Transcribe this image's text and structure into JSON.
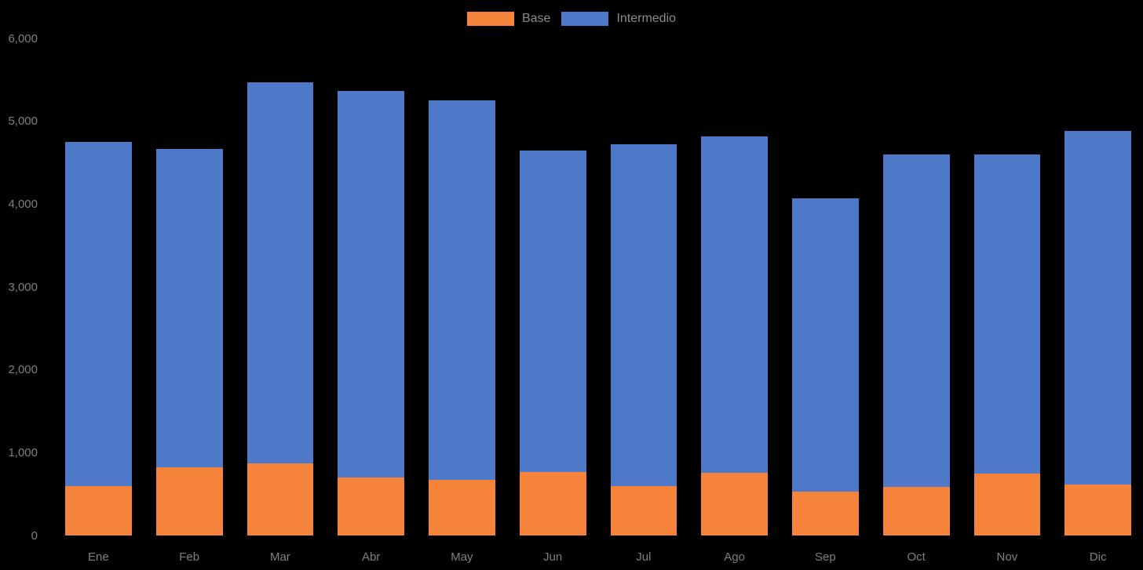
{
  "page": {
    "background_color": "#000000",
    "axis_text_color": "#7f7f7f",
    "legend_text_color": "#8a8a8a"
  },
  "legend": {
    "items": [
      {
        "label": "Base",
        "color": "#F5833C"
      },
      {
        "label": "Intermedio",
        "color": "#4E78C8"
      }
    ]
  },
  "chart_data": {
    "type": "bar",
    "stacked": true,
    "title": "",
    "xlabel": "",
    "ylabel": "",
    "categories": [
      "Ene",
      "Feb",
      "Mar",
      "Abr",
      "May",
      "Jun",
      "Jul",
      "Ago",
      "Sep",
      "Oct",
      "Nov",
      "Dic"
    ],
    "series": [
      {
        "name": "Base",
        "color": "#F5833C",
        "values": [
          600,
          820,
          870,
          700,
          670,
          770,
          600,
          760,
          530,
          590,
          750,
          620
        ]
      },
      {
        "name": "Intermedio",
        "color": "#4E78C8",
        "values": [
          4150,
          3850,
          4600,
          4670,
          4580,
          3880,
          4120,
          4060,
          3540,
          4010,
          3850,
          4260
        ]
      }
    ],
    "stack_totals": [
      4750,
      4670,
      5470,
      5370,
      5250,
      4650,
      4720,
      4820,
      4070,
      4600,
      4600,
      4880
    ],
    "ylim": [
      0,
      6000
    ],
    "ytick_values": [
      0,
      1000,
      2000,
      3000,
      4000,
      5000,
      6000
    ],
    "ytick_labels": [
      "0",
      "1,000",
      "2,000",
      "3,000",
      "4,000",
      "5,000",
      "6,000"
    ],
    "grid": false,
    "legend_position": "top-center"
  }
}
